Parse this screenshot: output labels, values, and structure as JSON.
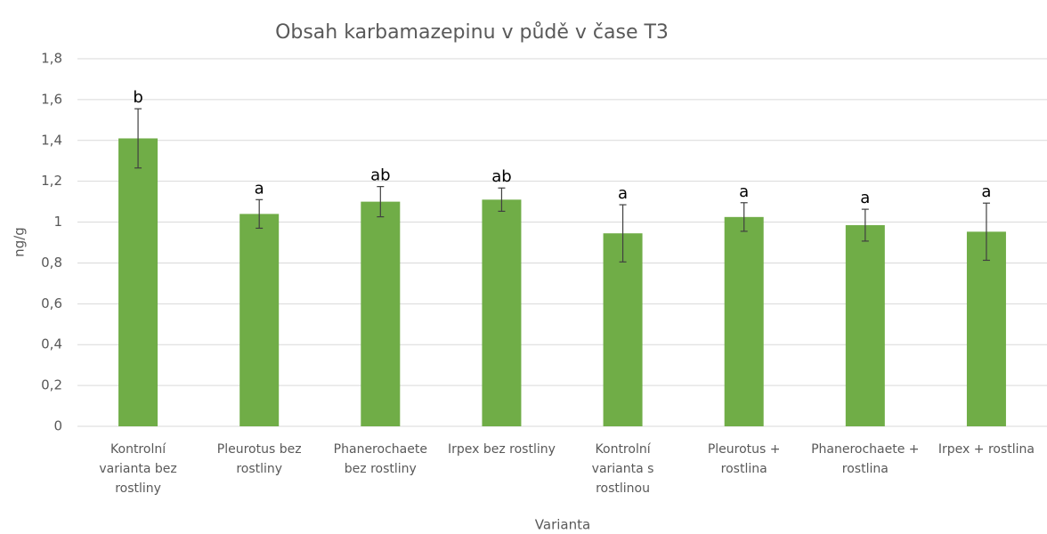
{
  "chart_data": {
    "type": "bar",
    "title": "Obsah karbamazepinu v půdě v čase T3",
    "x_label": "Varianta",
    "y_label": "ng/g",
    "categories": [
      "Kontrolní varianta bez rostliny",
      "Pleurotus bez rostliny",
      "Phanerochaete bez rostliny",
      "Irpex bez rostliny",
      "Kontrolní varianta s rostlinou",
      "Pleurotus + rostlina",
      "Phanerochaete + rostlina",
      "Irpex + rostlina"
    ],
    "values": [
      1.41,
      1.04,
      1.1,
      1.11,
      0.945,
      1.025,
      0.985,
      0.953
    ],
    "errors": [
      0.145,
      0.07,
      0.074,
      0.057,
      0.14,
      0.07,
      0.078,
      0.14
    ],
    "annotations": [
      "b",
      "a",
      "ab",
      "ab",
      "a",
      "a",
      "a",
      "a"
    ],
    "color": "#70ad47",
    "error_color": "#404040",
    "ylim": [
      0,
      1.8
    ],
    "yticks": [
      0,
      {
        "value": 0.2,
        "label": "0,2"
      },
      {
        "value": 0.4,
        "label": "0,4"
      },
      {
        "value": 0.6,
        "label": "0,6"
      },
      {
        "value": 0.8,
        "label": "0,8"
      },
      1,
      {
        "value": 1.2,
        "label": "1,2"
      },
      {
        "value": 1.4,
        "label": "1,4"
      },
      {
        "value": 1.6,
        "label": "1,6"
      },
      {
        "value": 1.8,
        "label": "1,8"
      }
    ],
    "grid": true
  }
}
